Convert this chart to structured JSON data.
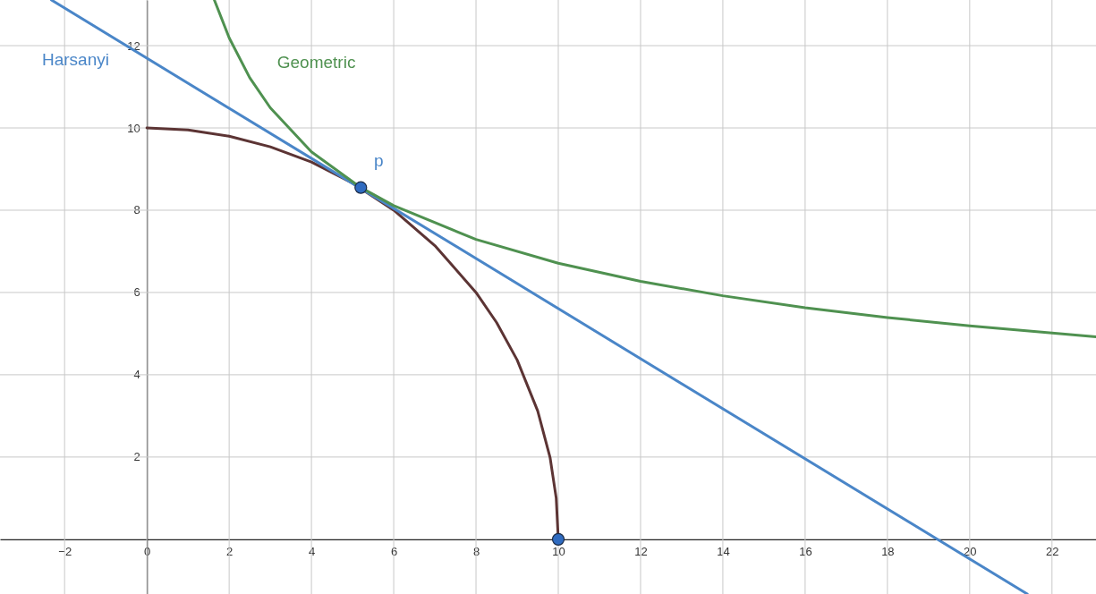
{
  "chart_data": {
    "type": "line",
    "xlim": [
      -3.57,
      23.07
    ],
    "ylim": [
      -1.33,
      13.11
    ],
    "xticks": [
      {
        "value": -2,
        "label": "−2"
      },
      0,
      2,
      4,
      6,
      8,
      10,
      12,
      14,
      16,
      18,
      20,
      22
    ],
    "yticks": [
      2,
      4,
      6,
      8,
      10,
      12
    ],
    "grid": true,
    "line_style": "solid",
    "series": [
      {
        "color": "#5c3434",
        "x": [
          0,
          1,
          2,
          3,
          4,
          5,
          6,
          7,
          8,
          8.5,
          9,
          9.5,
          9.8,
          9.95,
          10
        ],
        "values": [
          10,
          9.95,
          9.8,
          9.54,
          9.17,
          8.66,
          8,
          7.14,
          6,
          5.27,
          4.36,
          3.12,
          1.99,
          1,
          0
        ]
      },
      {
        "name": "Harsanyi",
        "color": "#4a86c8",
        "x": [
          -2.32,
          5.2,
          21.4
        ],
        "values": [
          13.11,
          8.53,
          -1.33
        ]
      },
      {
        "name": "Geometric",
        "color": "#4f9150",
        "x": [
          1.64,
          2,
          2.5,
          3,
          4,
          5.2,
          6,
          8,
          10,
          12,
          14,
          16,
          18,
          20,
          23.07
        ],
        "values": [
          13.11,
          12.19,
          11.22,
          10.49,
          9.42,
          8.55,
          8.11,
          7.29,
          6.71,
          6.27,
          5.92,
          5.63,
          5.39,
          5.19,
          4.92
        ]
      },
      {
        "type": "scatter",
        "color": "#2f6bc0",
        "x": [
          5.2,
          10
        ],
        "values": [
          8.55,
          0
        ]
      }
    ],
    "annotations": [
      {
        "text": "p",
        "x": 5.2,
        "y": 8.55
      }
    ]
  }
}
